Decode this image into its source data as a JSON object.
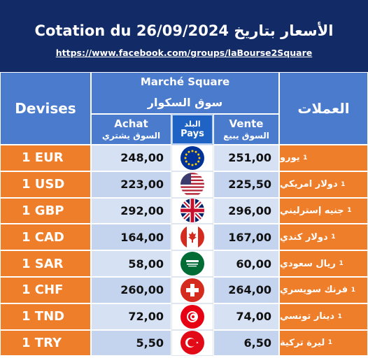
{
  "header": {
    "title": "Cotation du 26/09/2024 الأسعار بتاريخ",
    "url": "https://www.facebook.com/groups/laBourse2Square"
  },
  "table_header": {
    "devises": "Devises",
    "market_fr": "Marché Square",
    "market_ar": "سوق السكوار",
    "achat": "Achat",
    "achat_ar": "السوق يشتري",
    "pays_ar": "البلد",
    "pays": "Pays",
    "vente": "Vente",
    "vente_ar": "السوق يبيع",
    "currencies_ar": "العملات"
  },
  "rows": [
    {
      "code": "1 EUR",
      "achat": "248,00",
      "vente": "251,00",
      "name_ar": "يورو",
      "qty": "1",
      "flag": "eu-flag-icon"
    },
    {
      "code": "1 USD",
      "achat": "223,00",
      "vente": "225,50",
      "name_ar": "دولار امريكي",
      "qty": "1",
      "flag": "us-flag-icon"
    },
    {
      "code": "1 GBP",
      "achat": "292,00",
      "vente": "296,00",
      "name_ar": "جنيه إسترليني",
      "qty": "1",
      "flag": "uk-flag-icon"
    },
    {
      "code": "1 CAD",
      "achat": "164,00",
      "vente": "167,00",
      "name_ar": "دولار كندي",
      "qty": "1",
      "flag": "canada-flag-icon"
    },
    {
      "code": "1 SAR",
      "achat": "58,00",
      "vente": "60,00",
      "name_ar": "ريال سعودي",
      "qty": "1",
      "flag": "saudi-flag-icon"
    },
    {
      "code": "1 CHF",
      "achat": "260,00",
      "vente": "264,00",
      "name_ar": "فرنك سويسري",
      "qty": "1",
      "flag": "swiss-flag-icon"
    },
    {
      "code": "1 TND",
      "achat": "72,00",
      "vente": "74,00",
      "name_ar": "دينار تونسي",
      "qty": "1",
      "flag": "tunisia-flag-icon"
    },
    {
      "code": "1 TRY",
      "achat": "5,50",
      "vente": "6,50",
      "name_ar": "ليرة تركية",
      "qty": "1",
      "flag": "turkey-flag-icon"
    }
  ],
  "colors": {
    "header_bg": "#122a66",
    "table_header_bg": "#4a7bcc",
    "pays_bg": "#1f63c4",
    "row_orange": "#ef7e2a",
    "price_bg": "#d6e1f3"
  }
}
